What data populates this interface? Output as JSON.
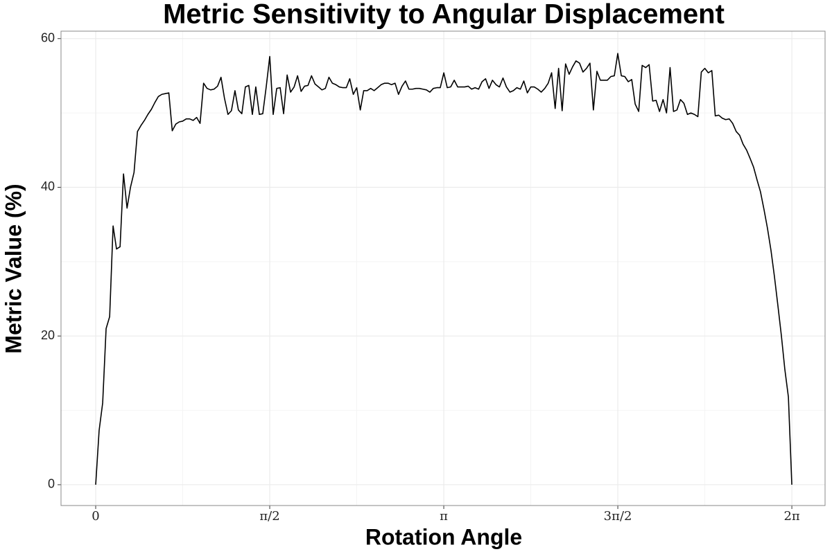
{
  "chart_data": {
    "type": "line",
    "title": "Metric Sensitivity to Angular Displacement",
    "x_label": "Rotation Angle",
    "y_label": "Metric Value (%)",
    "xlim": [
      -0.313,
      6.583
    ],
    "ylim": [
      -2.8,
      61.0
    ],
    "xticks": [
      {
        "value": 0,
        "label": "0"
      },
      {
        "value": 1.5708,
        "label": "π/2"
      },
      {
        "value": 3.1416,
        "label": "π"
      },
      {
        "value": 4.7124,
        "label": "3π/2"
      },
      {
        "value": 6.2832,
        "label": "2π"
      }
    ],
    "yticks": [
      0,
      20,
      40,
      60
    ],
    "x_minor_grid": [
      0.785,
      2.356,
      3.927,
      5.498
    ],
    "y_minor_grid": [
      10,
      30,
      50
    ],
    "grid": true,
    "series": [
      {
        "color": "#000000",
        "x": [
          0,
          0.031,
          0.063,
          0.094,
          0.126,
          0.157,
          0.188,
          0.22,
          0.251,
          0.283,
          0.314,
          0.346,
          0.377,
          0.408,
          0.44,
          0.471,
          0.503,
          0.534,
          0.565,
          0.597,
          0.628,
          0.66,
          0.691,
          0.723,
          0.754,
          0.785,
          0.817,
          0.848,
          0.88,
          0.911,
          0.942,
          0.974,
          1.005,
          1.037,
          1.068,
          1.1,
          1.131,
          1.162,
          1.194,
          1.225,
          1.257,
          1.288,
          1.319,
          1.351,
          1.382,
          1.414,
          1.445,
          1.477,
          1.508,
          1.539,
          1.571,
          1.602,
          1.634,
          1.665,
          1.696,
          1.728,
          1.759,
          1.791,
          1.822,
          1.854,
          1.885,
          1.916,
          1.948,
          1.979,
          2.011,
          2.042,
          2.073,
          2.105,
          2.136,
          2.168,
          2.199,
          2.231,
          2.262,
          2.293,
          2.325,
          2.356,
          2.388,
          2.419,
          2.45,
          2.482,
          2.513,
          2.545,
          2.576,
          2.608,
          2.639,
          2.67,
          2.702,
          2.733,
          2.765,
          2.796,
          2.827,
          2.859,
          2.89,
          2.922,
          2.953,
          2.985,
          3.016,
          3.047,
          3.079,
          3.11,
          3.142,
          3.173,
          3.204,
          3.236,
          3.267,
          3.299,
          3.33,
          3.362,
          3.393,
          3.424,
          3.456,
          3.487,
          3.519,
          3.55,
          3.581,
          3.613,
          3.644,
          3.676,
          3.707,
          3.739,
          3.77,
          3.801,
          3.833,
          3.864,
          3.896,
          3.927,
          3.958,
          3.99,
          4.021,
          4.053,
          4.084,
          4.115,
          4.147,
          4.178,
          4.21,
          4.241,
          4.273,
          4.304,
          4.335,
          4.367,
          4.398,
          4.43,
          4.461,
          4.492,
          4.524,
          4.555,
          4.587,
          4.618,
          4.65,
          4.681,
          4.712,
          4.744,
          4.775,
          4.807,
          4.838,
          4.869,
          4.901,
          4.932,
          4.964,
          4.995,
          5.027,
          5.058,
          5.089,
          5.121,
          5.152,
          5.184,
          5.215,
          5.246,
          5.278,
          5.309,
          5.341,
          5.372,
          5.404,
          5.435,
          5.466,
          5.498,
          5.529,
          5.561,
          5.592,
          5.623,
          5.655,
          5.686,
          5.718,
          5.749,
          5.781,
          5.812,
          5.843,
          5.875,
          5.906,
          5.938,
          5.969,
          6.0,
          6.032,
          6.063,
          6.095,
          6.126,
          6.158,
          6.189,
          6.22,
          6.252,
          6.283
        ],
        "values": [
          0,
          7.3,
          11,
          21,
          22.6,
          34.8,
          31.7,
          32,
          41.8,
          37.2,
          40,
          42,
          47.5,
          48.3,
          49,
          49.8,
          50.5,
          51.4,
          52.2,
          52.5,
          52.6,
          52.7,
          47.6,
          48.5,
          48.8,
          48.9,
          49.2,
          49.2,
          49,
          49.4,
          48.6,
          54,
          53.3,
          53.1,
          53.2,
          53.6,
          54.8,
          52,
          49.8,
          50.3,
          53,
          50.4,
          49.9,
          53.5,
          53.7,
          49.8,
          53.5,
          49.8,
          49.9,
          53.5,
          57.6,
          49.8,
          53.3,
          53.4,
          49.9,
          55.1,
          52.8,
          53.5,
          55,
          52.9,
          53.6,
          53.7,
          55,
          53.9,
          53.5,
          53.1,
          53.3,
          54.8,
          54,
          53.8,
          53.5,
          53.4,
          53.4,
          54.6,
          52.5,
          53.4,
          50.4,
          53,
          53,
          53.3,
          53,
          53.4,
          53.8,
          54,
          54,
          53.8,
          54,
          52.5,
          53.6,
          54.3,
          53.2,
          53.2,
          53.3,
          53.3,
          53.2,
          53.1,
          52.8,
          53.3,
          53.4,
          53.4,
          55.4,
          53.4,
          53.5,
          54.4,
          53.5,
          53.5,
          53.5,
          53.6,
          53.2,
          53.4,
          53.2,
          54.2,
          54.6,
          53.3,
          54.4,
          53.8,
          53.5,
          54.7,
          53.5,
          52.8,
          53,
          53.4,
          53.2,
          54.3,
          52.7,
          53.5,
          53.5,
          53.2,
          52.8,
          53.3,
          54,
          55.4,
          50.6,
          56,
          50.3,
          56.6,
          55.2,
          56.2,
          57,
          56.7,
          55.5,
          56,
          56.7,
          50.4,
          55.6,
          54.4,
          54.4,
          54.4,
          54.9,
          55,
          58,
          55,
          54.9,
          54.2,
          54.5,
          51.2,
          50.2,
          56.4,
          56.1,
          56.5,
          51.6,
          51.7,
          50.2,
          51.8,
          50,
          56.1,
          50.2,
          50.4,
          51.8,
          51.3,
          49.8,
          50,
          49.8,
          49.5,
          55.5,
          56,
          55.4,
          55.7,
          49.6,
          49.7,
          49.3,
          49.1,
          49.2,
          48.6,
          47.5,
          47,
          45.8,
          45,
          43.9,
          42.7,
          41,
          39.4,
          37,
          34.5,
          31.5,
          28,
          24,
          20,
          15.5,
          11.8,
          0
        ]
      }
    ]
  }
}
